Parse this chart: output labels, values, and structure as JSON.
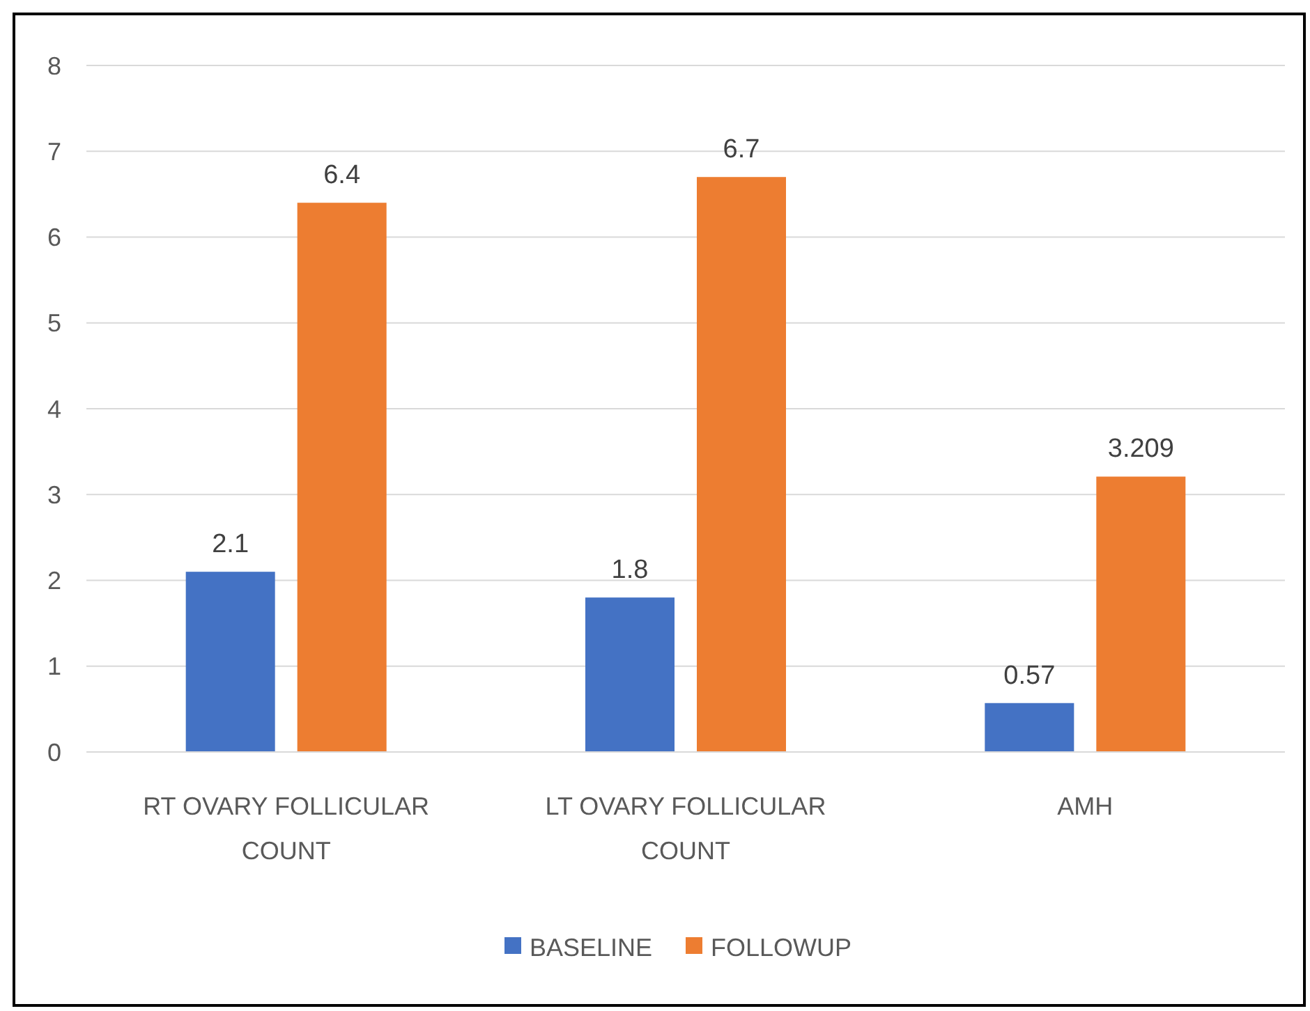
{
  "chart_data": {
    "type": "bar",
    "categories": [
      "RT OVARY FOLLICULAR COUNT",
      "LT OVARY FOLLICULAR COUNT",
      "AMH"
    ],
    "series": [
      {
        "name": "BASELINE",
        "color": "#4472c4",
        "values": [
          2.1,
          1.8,
          0.57
        ]
      },
      {
        "name": "FOLLOWUP",
        "color": "#ed7d31",
        "values": [
          6.4,
          6.7,
          3.209
        ]
      }
    ],
    "ylim": [
      0,
      8
    ],
    "yticks": [
      0,
      1,
      2,
      3,
      4,
      5,
      6,
      7,
      8
    ],
    "grid": "y",
    "legend": "bottom",
    "data_labels": true
  }
}
